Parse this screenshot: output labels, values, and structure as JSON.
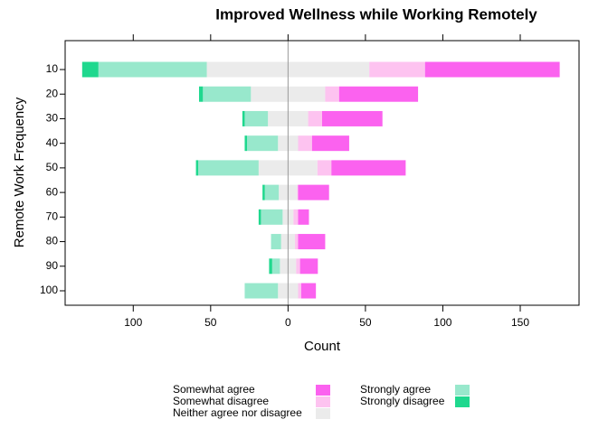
{
  "chart_data": {
    "type": "diverging_bar",
    "title": "Improved Wellness while Working Remotely",
    "x_label": "Count",
    "y_label": "Remote Work Frequency",
    "categories": [
      "10",
      "20",
      "30",
      "40",
      "50",
      "60",
      "70",
      "80",
      "90",
      "100"
    ],
    "series": [
      {
        "name": "Somewhat agree",
        "color": "#fb62ef",
        "values": [
          87,
          51,
          39,
          24,
          48,
          20,
          7,
          17.5,
          11.5,
          9.5
        ]
      },
      {
        "name": "Somewhat disagree",
        "color": "#fdc3f0",
        "values": [
          36,
          9,
          9,
          9,
          9,
          0.5,
          3,
          2,
          2.5,
          2
        ]
      },
      {
        "name": "Neither agree nor disagree",
        "color": "#ebebeb",
        "values": [
          105,
          48,
          26,
          13,
          38,
          12,
          7,
          9,
          10.5,
          13
        ]
      },
      {
        "name": "Strongly agree",
        "color": "#98e8cc",
        "values": [
          70,
          31,
          15,
          20,
          39,
          9,
          14,
          6.5,
          5,
          21.5
        ]
      },
      {
        "name": "Strongly disagree",
        "color": "#1fd88e",
        "values": [
          10.5,
          2.5,
          1.5,
          1.5,
          1.5,
          1.5,
          1.5,
          0,
          2,
          0
        ]
      }
    ],
    "xlim": [
      -144,
      188
    ],
    "xticks": [
      {
        "value": -100,
        "label": "100"
      },
      {
        "value": -50,
        "label": "50"
      },
      0,
      50,
      100,
      150
    ]
  }
}
